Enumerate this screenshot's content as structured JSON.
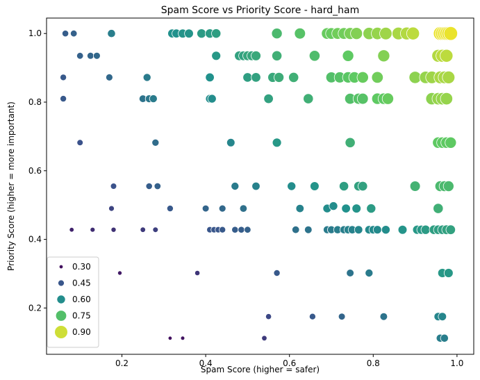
{
  "chart_data": {
    "type": "scatter",
    "title": "Spam Score vs Priority Score - hard_ham",
    "xlabel": "Spam Score (higher = safer)",
    "ylabel": "Priority Score (higher = more important)",
    "xlim": [
      0.02,
      1.04
    ],
    "ylim": [
      0.065,
      1.045
    ],
    "xticks": [
      "0.2",
      "0.4",
      "0.6",
      "0.8",
      "1.0"
    ],
    "yticks": [
      "0.2",
      "0.4",
      "0.6",
      "0.8",
      "1.0"
    ],
    "legend": {
      "placement": "lower-left",
      "entries": [
        "0.30",
        "0.45",
        "0.60",
        "0.75",
        "0.90"
      ]
    },
    "colormap": [
      "#440154",
      "#3b528b",
      "#21918c",
      "#5ec962",
      "#fde725"
    ],
    "grid": false,
    "points": [
      {
        "x": 0.065,
        "y": 1.0,
        "s": 0.47
      },
      {
        "x": 0.085,
        "y": 1.0,
        "s": 0.48
      },
      {
        "x": 0.175,
        "y": 1.0,
        "s": 0.56
      },
      {
        "x": 0.32,
        "y": 1.0,
        "s": 0.61
      },
      {
        "x": 0.33,
        "y": 1.0,
        "s": 0.61
      },
      {
        "x": 0.345,
        "y": 1.0,
        "s": 0.62
      },
      {
        "x": 0.36,
        "y": 1.0,
        "s": 0.62
      },
      {
        "x": 0.39,
        "y": 1.0,
        "s": 0.64
      },
      {
        "x": 0.41,
        "y": 1.0,
        "s": 0.64
      },
      {
        "x": 0.425,
        "y": 1.0,
        "s": 0.65
      },
      {
        "x": 0.57,
        "y": 1.0,
        "s": 0.73
      },
      {
        "x": 0.625,
        "y": 1.0,
        "s": 0.76
      },
      {
        "x": 0.69,
        "y": 1.0,
        "s": 0.79
      },
      {
        "x": 0.7,
        "y": 1.0,
        "s": 0.79
      },
      {
        "x": 0.715,
        "y": 1.0,
        "s": 0.8
      },
      {
        "x": 0.73,
        "y": 1.0,
        "s": 0.8
      },
      {
        "x": 0.745,
        "y": 1.0,
        "s": 0.81
      },
      {
        "x": 0.76,
        "y": 1.0,
        "s": 0.82
      },
      {
        "x": 0.79,
        "y": 1.0,
        "s": 0.83
      },
      {
        "x": 0.81,
        "y": 1.0,
        "s": 0.84
      },
      {
        "x": 0.83,
        "y": 1.0,
        "s": 0.85
      },
      {
        "x": 0.86,
        "y": 1.0,
        "s": 0.86
      },
      {
        "x": 0.88,
        "y": 1.0,
        "s": 0.87
      },
      {
        "x": 0.895,
        "y": 1.0,
        "s": 0.88
      },
      {
        "x": 0.96,
        "y": 1.0,
        "s": 0.93
      },
      {
        "x": 0.965,
        "y": 1.0,
        "s": 0.93
      },
      {
        "x": 0.97,
        "y": 1.0,
        "s": 0.93
      },
      {
        "x": 0.975,
        "y": 1.0,
        "s": 0.93
      },
      {
        "x": 0.98,
        "y": 1.0,
        "s": 0.93
      },
      {
        "x": 0.985,
        "y": 1.0,
        "s": 0.93
      },
      {
        "x": 0.1,
        "y": 0.935,
        "s": 0.48
      },
      {
        "x": 0.125,
        "y": 0.935,
        "s": 0.49
      },
      {
        "x": 0.14,
        "y": 0.935,
        "s": 0.5
      },
      {
        "x": 0.425,
        "y": 0.935,
        "s": 0.63
      },
      {
        "x": 0.48,
        "y": 0.935,
        "s": 0.66
      },
      {
        "x": 0.49,
        "y": 0.935,
        "s": 0.66
      },
      {
        "x": 0.5,
        "y": 0.935,
        "s": 0.67
      },
      {
        "x": 0.51,
        "y": 0.935,
        "s": 0.67
      },
      {
        "x": 0.52,
        "y": 0.935,
        "s": 0.68
      },
      {
        "x": 0.57,
        "y": 0.935,
        "s": 0.7
      },
      {
        "x": 0.66,
        "y": 0.935,
        "s": 0.74
      },
      {
        "x": 0.74,
        "y": 0.935,
        "s": 0.78
      },
      {
        "x": 0.825,
        "y": 0.935,
        "s": 0.82
      },
      {
        "x": 0.955,
        "y": 0.935,
        "s": 0.87
      },
      {
        "x": 0.965,
        "y": 0.935,
        "s": 0.88
      },
      {
        "x": 0.975,
        "y": 0.935,
        "s": 0.88
      },
      {
        "x": 0.06,
        "y": 0.872,
        "s": 0.46
      },
      {
        "x": 0.17,
        "y": 0.872,
        "s": 0.5
      },
      {
        "x": 0.26,
        "y": 0.872,
        "s": 0.55
      },
      {
        "x": 0.41,
        "y": 0.872,
        "s": 0.61
      },
      {
        "x": 0.5,
        "y": 0.872,
        "s": 0.65
      },
      {
        "x": 0.52,
        "y": 0.872,
        "s": 0.66
      },
      {
        "x": 0.56,
        "y": 0.872,
        "s": 0.68
      },
      {
        "x": 0.575,
        "y": 0.872,
        "s": 0.69
      },
      {
        "x": 0.61,
        "y": 0.872,
        "s": 0.7
      },
      {
        "x": 0.7,
        "y": 0.872,
        "s": 0.75
      },
      {
        "x": 0.72,
        "y": 0.872,
        "s": 0.76
      },
      {
        "x": 0.74,
        "y": 0.872,
        "s": 0.77
      },
      {
        "x": 0.755,
        "y": 0.872,
        "s": 0.78
      },
      {
        "x": 0.775,
        "y": 0.872,
        "s": 0.79
      },
      {
        "x": 0.81,
        "y": 0.872,
        "s": 0.8
      },
      {
        "x": 0.9,
        "y": 0.872,
        "s": 0.83
      },
      {
        "x": 0.925,
        "y": 0.872,
        "s": 0.84
      },
      {
        "x": 0.94,
        "y": 0.872,
        "s": 0.85
      },
      {
        "x": 0.96,
        "y": 0.872,
        "s": 0.86
      },
      {
        "x": 0.97,
        "y": 0.872,
        "s": 0.86
      },
      {
        "x": 0.98,
        "y": 0.872,
        "s": 0.86
      },
      {
        "x": 0.06,
        "y": 0.81,
        "s": 0.46
      },
      {
        "x": 0.25,
        "y": 0.81,
        "s": 0.53
      },
      {
        "x": 0.265,
        "y": 0.81,
        "s": 0.54
      },
      {
        "x": 0.275,
        "y": 0.81,
        "s": 0.55
      },
      {
        "x": 0.41,
        "y": 0.81,
        "s": 0.6
      },
      {
        "x": 0.415,
        "y": 0.81,
        "s": 0.6
      },
      {
        "x": 0.55,
        "y": 0.81,
        "s": 0.66
      },
      {
        "x": 0.645,
        "y": 0.81,
        "s": 0.7
      },
      {
        "x": 0.745,
        "y": 0.81,
        "s": 0.75
      },
      {
        "x": 0.765,
        "y": 0.81,
        "s": 0.76
      },
      {
        "x": 0.775,
        "y": 0.81,
        "s": 0.76
      },
      {
        "x": 0.81,
        "y": 0.81,
        "s": 0.78
      },
      {
        "x": 0.825,
        "y": 0.81,
        "s": 0.78
      },
      {
        "x": 0.835,
        "y": 0.81,
        "s": 0.79
      },
      {
        "x": 0.94,
        "y": 0.81,
        "s": 0.83
      },
      {
        "x": 0.955,
        "y": 0.81,
        "s": 0.84
      },
      {
        "x": 0.965,
        "y": 0.81,
        "s": 0.84
      },
      {
        "x": 0.975,
        "y": 0.81,
        "s": 0.84
      },
      {
        "x": 0.1,
        "y": 0.682,
        "s": 0.44
      },
      {
        "x": 0.28,
        "y": 0.682,
        "s": 0.51
      },
      {
        "x": 0.46,
        "y": 0.682,
        "s": 0.58
      },
      {
        "x": 0.57,
        "y": 0.682,
        "s": 0.63
      },
      {
        "x": 0.745,
        "y": 0.682,
        "s": 0.7
      },
      {
        "x": 0.955,
        "y": 0.682,
        "s": 0.78
      },
      {
        "x": 0.965,
        "y": 0.682,
        "s": 0.78
      },
      {
        "x": 0.975,
        "y": 0.682,
        "s": 0.78
      },
      {
        "x": 0.985,
        "y": 0.682,
        "s": 0.78
      },
      {
        "x": 0.18,
        "y": 0.555,
        "s": 0.44
      },
      {
        "x": 0.265,
        "y": 0.555,
        "s": 0.47
      },
      {
        "x": 0.285,
        "y": 0.555,
        "s": 0.48
      },
      {
        "x": 0.47,
        "y": 0.555,
        "s": 0.55
      },
      {
        "x": 0.52,
        "y": 0.555,
        "s": 0.57
      },
      {
        "x": 0.605,
        "y": 0.555,
        "s": 0.6
      },
      {
        "x": 0.66,
        "y": 0.555,
        "s": 0.62
      },
      {
        "x": 0.73,
        "y": 0.555,
        "s": 0.65
      },
      {
        "x": 0.765,
        "y": 0.555,
        "s": 0.66
      },
      {
        "x": 0.775,
        "y": 0.555,
        "s": 0.66
      },
      {
        "x": 0.9,
        "y": 0.555,
        "s": 0.71
      },
      {
        "x": 0.96,
        "y": 0.555,
        "s": 0.73
      },
      {
        "x": 0.97,
        "y": 0.555,
        "s": 0.73
      },
      {
        "x": 0.98,
        "y": 0.555,
        "s": 0.73
      },
      {
        "x": 0.175,
        "y": 0.49,
        "s": 0.41
      },
      {
        "x": 0.315,
        "y": 0.49,
        "s": 0.46
      },
      {
        "x": 0.4,
        "y": 0.49,
        "s": 0.49
      },
      {
        "x": 0.44,
        "y": 0.49,
        "s": 0.5
      },
      {
        "x": 0.49,
        "y": 0.49,
        "s": 0.52
      },
      {
        "x": 0.625,
        "y": 0.49,
        "s": 0.57
      },
      {
        "x": 0.69,
        "y": 0.49,
        "s": 0.6
      },
      {
        "x": 0.705,
        "y": 0.497,
        "s": 0.6
      },
      {
        "x": 0.735,
        "y": 0.49,
        "s": 0.61
      },
      {
        "x": 0.76,
        "y": 0.49,
        "s": 0.62
      },
      {
        "x": 0.795,
        "y": 0.49,
        "s": 0.64
      },
      {
        "x": 0.955,
        "y": 0.49,
        "s": 0.7
      },
      {
        "x": 0.08,
        "y": 0.428,
        "s": 0.34
      },
      {
        "x": 0.13,
        "y": 0.428,
        "s": 0.36
      },
      {
        "x": 0.18,
        "y": 0.428,
        "s": 0.37
      },
      {
        "x": 0.25,
        "y": 0.428,
        "s": 0.39
      },
      {
        "x": 0.28,
        "y": 0.428,
        "s": 0.4
      },
      {
        "x": 0.41,
        "y": 0.428,
        "s": 0.45
      },
      {
        "x": 0.42,
        "y": 0.428,
        "s": 0.45
      },
      {
        "x": 0.43,
        "y": 0.428,
        "s": 0.45
      },
      {
        "x": 0.44,
        "y": 0.428,
        "s": 0.46
      },
      {
        "x": 0.47,
        "y": 0.428,
        "s": 0.47
      },
      {
        "x": 0.485,
        "y": 0.428,
        "s": 0.47
      },
      {
        "x": 0.5,
        "y": 0.428,
        "s": 0.48
      },
      {
        "x": 0.615,
        "y": 0.428,
        "s": 0.52
      },
      {
        "x": 0.645,
        "y": 0.428,
        "s": 0.53
      },
      {
        "x": 0.69,
        "y": 0.428,
        "s": 0.55
      },
      {
        "x": 0.7,
        "y": 0.428,
        "s": 0.55
      },
      {
        "x": 0.715,
        "y": 0.428,
        "s": 0.56
      },
      {
        "x": 0.73,
        "y": 0.428,
        "s": 0.56
      },
      {
        "x": 0.74,
        "y": 0.428,
        "s": 0.57
      },
      {
        "x": 0.75,
        "y": 0.428,
        "s": 0.57
      },
      {
        "x": 0.765,
        "y": 0.428,
        "s": 0.58
      },
      {
        "x": 0.79,
        "y": 0.428,
        "s": 0.59
      },
      {
        "x": 0.8,
        "y": 0.428,
        "s": 0.59
      },
      {
        "x": 0.81,
        "y": 0.428,
        "s": 0.59
      },
      {
        "x": 0.83,
        "y": 0.428,
        "s": 0.6
      },
      {
        "x": 0.87,
        "y": 0.428,
        "s": 0.62
      },
      {
        "x": 0.905,
        "y": 0.428,
        "s": 0.63
      },
      {
        "x": 0.915,
        "y": 0.428,
        "s": 0.63
      },
      {
        "x": 0.925,
        "y": 0.428,
        "s": 0.64
      },
      {
        "x": 0.945,
        "y": 0.428,
        "s": 0.65
      },
      {
        "x": 0.955,
        "y": 0.428,
        "s": 0.65
      },
      {
        "x": 0.965,
        "y": 0.428,
        "s": 0.65
      },
      {
        "x": 0.975,
        "y": 0.428,
        "s": 0.66
      },
      {
        "x": 0.985,
        "y": 0.428,
        "s": 0.66
      },
      {
        "x": 0.195,
        "y": 0.302,
        "s": 0.32
      },
      {
        "x": 0.38,
        "y": 0.302,
        "s": 0.38
      },
      {
        "x": 0.57,
        "y": 0.302,
        "s": 0.46
      },
      {
        "x": 0.745,
        "y": 0.302,
        "s": 0.53
      },
      {
        "x": 0.79,
        "y": 0.302,
        "s": 0.55
      },
      {
        "x": 0.965,
        "y": 0.302,
        "s": 0.63
      },
      {
        "x": 0.98,
        "y": 0.302,
        "s": 0.63
      },
      {
        "x": 0.55,
        "y": 0.175,
        "s": 0.42
      },
      {
        "x": 0.655,
        "y": 0.175,
        "s": 0.46
      },
      {
        "x": 0.725,
        "y": 0.175,
        "s": 0.49
      },
      {
        "x": 0.825,
        "y": 0.175,
        "s": 0.53
      },
      {
        "x": 0.955,
        "y": 0.175,
        "s": 0.58
      },
      {
        "x": 0.965,
        "y": 0.175,
        "s": 0.58
      },
      {
        "x": 0.315,
        "y": 0.112,
        "s": 0.3
      },
      {
        "x": 0.345,
        "y": 0.112,
        "s": 0.31
      },
      {
        "x": 0.54,
        "y": 0.112,
        "s": 0.39
      },
      {
        "x": 0.96,
        "y": 0.112,
        "s": 0.56
      },
      {
        "x": 0.97,
        "y": 0.112,
        "s": 0.56
      }
    ]
  }
}
